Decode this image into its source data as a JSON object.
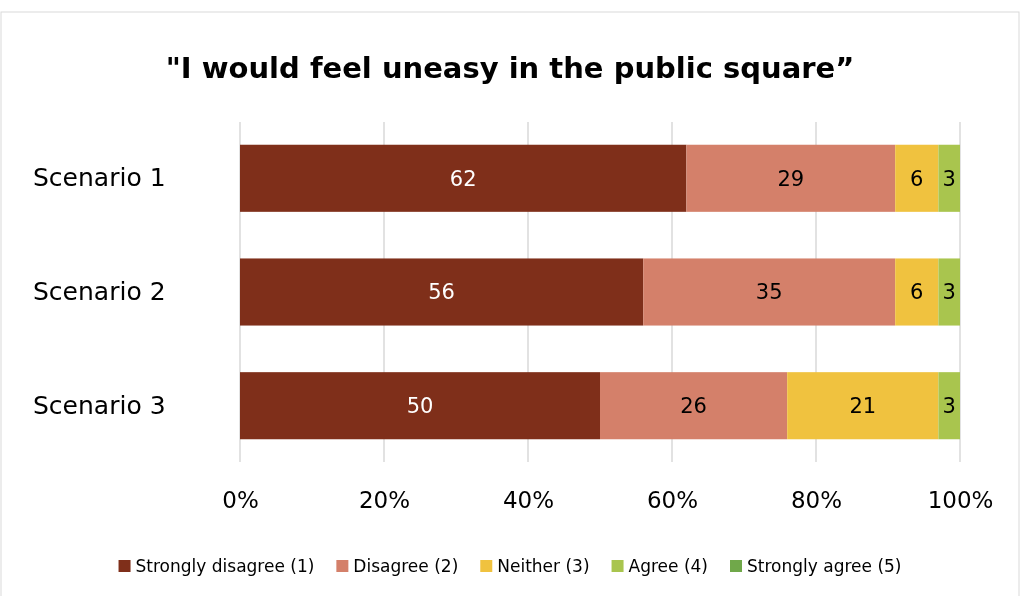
{
  "chart_data": {
    "type": "bar",
    "orientation": "horizontal",
    "stacked": true,
    "title": "\"I would feel uneasy in the public square”",
    "categories": [
      "Scenario 1",
      "Scenario 2",
      "Scenario 3"
    ],
    "series": [
      {
        "name": "Strongly disagree (1)",
        "color": "#7f2f1a",
        "values": [
          62,
          56,
          50
        ],
        "value_labels": [
          "62",
          "56",
          "50"
        ]
      },
      {
        "name": "Disagree (2)",
        "color": "#d4806a",
        "values": [
          29,
          35,
          26
        ],
        "value_labels": [
          "29",
          "35",
          "26"
        ]
      },
      {
        "name": "Neither (3)",
        "color": "#f0c23f",
        "values": [
          6,
          6,
          21
        ],
        "value_labels": [
          "6",
          "6",
          "21"
        ]
      },
      {
        "name": "Agree (4)",
        "color": "#a9c54e",
        "values": [
          3,
          3,
          3
        ],
        "value_labels": [
          "3",
          "3",
          "3"
        ]
      },
      {
        "name": "Strongly agree (5)",
        "color": "#70a84a",
        "values": [
          0,
          0,
          0
        ],
        "value_labels": [
          null,
          null,
          null
        ]
      }
    ],
    "xlim": [
      0,
      100
    ],
    "xticks": [
      {
        "value": 0,
        "label": "0%"
      },
      {
        "value": 20,
        "label": "20%"
      },
      {
        "value": 40,
        "label": "40%"
      },
      {
        "value": 60,
        "label": "60%"
      },
      {
        "value": 80,
        "label": "80%"
      },
      {
        "value": 100,
        "label": "100%"
      }
    ],
    "grid": "x",
    "legend": "bottom"
  }
}
